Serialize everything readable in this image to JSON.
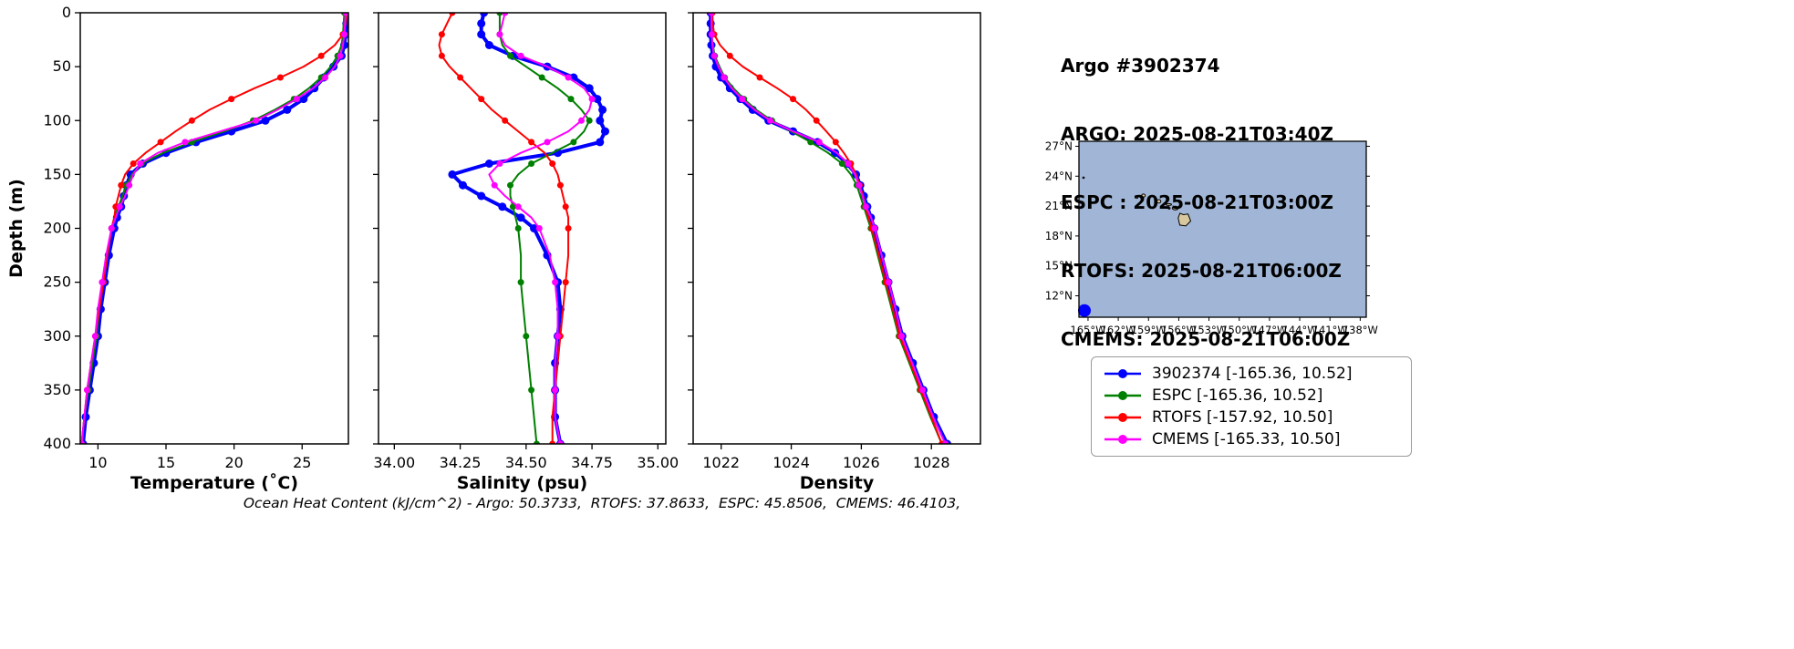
{
  "header": {
    "title": "Argo #3902374",
    "lines": [
      "ARGO: 2025-08-21T03:40Z",
      "ESPC : 2025-08-21T03:00Z",
      "RTOFS: 2025-08-21T06:00Z",
      "CMEMS: 2025-08-21T06:00Z"
    ]
  },
  "footer": {
    "caption": "Ocean Heat Content (kJ/cm^2) - Argo: 50.3733,  RTOFS: 37.8633,  ESPC: 45.8506,  CMEMS: 46.4103,"
  },
  "legend": {
    "entries": [
      {
        "label": "3902374 [-165.36, 10.52]",
        "color": "#0000ff"
      },
      {
        "label": "ESPC [-165.36, 10.52]",
        "color": "#008000"
      },
      {
        "label": "RTOFS [-157.92, 10.50]",
        "color": "#ff0000"
      },
      {
        "label": "CMEMS [-165.33, 10.50]",
        "color": "#ff00ff"
      }
    ]
  },
  "map": {
    "ocean_color": "#a1b6d6",
    "land_color": "#d9c79e",
    "extent": {
      "lon": [
        -165.9,
        -137.4
      ],
      "lat": [
        9.85,
        27.5
      ]
    },
    "lon_values": [
      -165,
      -162,
      -159,
      -156,
      -153,
      -150,
      -147,
      -144,
      -141,
      -138
    ],
    "lon_ticks": [
      "165°W",
      "162°W",
      "159°W",
      "156°W",
      "153°W",
      "150°W",
      "147°W",
      "144°W",
      "141°W",
      "138°W"
    ],
    "lat_values": [
      27,
      24,
      21,
      18,
      15,
      12
    ],
    "lat_ticks": [
      "27°N",
      "24°N",
      "21°N",
      "18°N",
      "15°N",
      "12°N"
    ],
    "marker": {
      "lon": -165.36,
      "lat": 10.52,
      "color": "#0000ff"
    },
    "islands": [
      {
        "name": "hawaii",
        "poly": [
          [
            -155.88,
            20.28
          ],
          [
            -155.55,
            20.14
          ],
          [
            -155.08,
            20.2
          ],
          [
            -154.82,
            19.5
          ],
          [
            -155.3,
            19.0
          ],
          [
            -155.9,
            19.1
          ],
          [
            -156.06,
            19.8
          ]
        ]
      },
      {
        "name": "maui",
        "lon": -156.35,
        "lat": 20.8,
        "rx": 0.3,
        "ry": 0.18
      },
      {
        "name": "molokai",
        "lon": -157.0,
        "lat": 21.15,
        "rx": 0.28,
        "ry": 0.09
      },
      {
        "name": "lanai",
        "lon": -156.95,
        "lat": 20.78,
        "rx": 0.1,
        "ry": 0.08
      },
      {
        "name": "oahu",
        "lon": -157.97,
        "lat": 21.47,
        "rx": 0.2,
        "ry": 0.17
      },
      {
        "name": "kauai",
        "lon": -159.5,
        "lat": 22.05,
        "rx": 0.18,
        "ry": 0.16
      },
      {
        "name": "niihau",
        "lon": -160.15,
        "lat": 21.88,
        "rx": 0.08,
        "ry": 0.1
      },
      {
        "name": "atoll",
        "lon": -165.45,
        "lat": 23.85,
        "rx": 0.08,
        "ry": 0.07
      }
    ]
  },
  "chart_data": [
    {
      "type": "line",
      "xlabel": "Temperature (˚C)",
      "ylabel": "Depth (m)",
      "xlim": [
        8.7,
        28.4
      ],
      "ylim": [
        0,
        400
      ],
      "xticks": [
        10,
        15,
        20,
        25
      ],
      "xtick_labels": [
        "10",
        "15",
        "20",
        "25"
      ],
      "yticks": [
        0,
        50,
        100,
        150,
        200,
        250,
        300,
        350,
        400
      ],
      "depths": [
        0,
        10,
        20,
        30,
        40,
        50,
        60,
        70,
        80,
        90,
        100,
        110,
        120,
        130,
        140,
        150,
        160,
        170,
        180,
        190,
        200,
        225,
        250,
        275,
        300,
        325,
        350,
        375,
        400
      ],
      "series": [
        {
          "name": "3902374",
          "color": "#0000ff",
          "line_width": 4,
          "marker_size": 4.5,
          "marker_every": 1,
          "values": [
            28.3,
            28.25,
            28.2,
            28.1,
            27.9,
            27.3,
            26.6,
            25.9,
            25.1,
            23.9,
            22.3,
            19.8,
            17.2,
            15.0,
            13.3,
            12.4,
            12.1,
            11.9,
            11.7,
            11.4,
            11.2,
            10.8,
            10.5,
            10.2,
            10.0,
            9.7,
            9.4,
            9.1,
            8.9
          ]
        },
        {
          "name": "ESPC",
          "color": "#008000",
          "line_width": 2,
          "marker_size": 3.5,
          "marker_every": 2,
          "values": [
            28.1,
            28.05,
            28.0,
            27.9,
            27.6,
            27.1,
            26.4,
            25.5,
            24.4,
            23.0,
            21.4,
            19.3,
            16.9,
            14.8,
            13.2,
            12.5,
            12.1,
            11.8,
            11.5,
            11.2,
            11.0,
            10.7,
            10.4,
            10.1,
            9.9,
            9.6,
            9.3,
            9.0,
            8.8
          ]
        },
        {
          "name": "RTOFS",
          "color": "#ff0000",
          "line_width": 2,
          "marker_size": 3.5,
          "marker_every": 2,
          "values": [
            28.3,
            28.2,
            28.0,
            27.4,
            26.4,
            25.1,
            23.4,
            21.5,
            19.8,
            18.2,
            16.9,
            15.7,
            14.6,
            13.5,
            12.6,
            12.0,
            11.7,
            11.5,
            11.3,
            11.2,
            11.0,
            10.7,
            10.4,
            10.1,
            9.8,
            9.5,
            9.2,
            9.0,
            8.8
          ]
        },
        {
          "name": "CMEMS",
          "color": "#ff00ff",
          "line_width": 2,
          "marker_size": 3.5,
          "marker_every": 2,
          "values": [
            28.2,
            28.15,
            28.1,
            28.0,
            27.8,
            27.4,
            26.7,
            25.8,
            24.6,
            23.2,
            21.6,
            19.0,
            16.4,
            14.4,
            13.1,
            12.6,
            12.3,
            12.0,
            11.6,
            11.3,
            11.0,
            10.6,
            10.3,
            10.0,
            9.8,
            9.5,
            9.2,
            9.0,
            8.8
          ]
        }
      ]
    },
    {
      "type": "line",
      "xlabel": "Salinity (psu)",
      "ylabel": "Depth (m)",
      "xlim": [
        33.94,
        35.03
      ],
      "ylim": [
        0,
        400
      ],
      "xticks": [
        34.0,
        34.25,
        34.5,
        34.75,
        35.0
      ],
      "xtick_labels": [
        "34.00",
        "34.25",
        "34.50",
        "34.75",
        "35.00"
      ],
      "yticks": [
        0,
        50,
        100,
        150,
        200,
        250,
        300,
        350,
        400
      ],
      "depths": [
        0,
        10,
        20,
        30,
        40,
        50,
        60,
        70,
        80,
        90,
        100,
        110,
        120,
        130,
        140,
        150,
        160,
        170,
        180,
        190,
        200,
        225,
        250,
        275,
        300,
        325,
        350,
        375,
        400
      ],
      "series": [
        {
          "name": "3902374",
          "color": "#0000ff",
          "line_width": 4,
          "marker_size": 4.5,
          "marker_every": 1,
          "values": [
            34.34,
            34.33,
            34.33,
            34.36,
            34.45,
            34.58,
            34.68,
            34.74,
            34.77,
            34.79,
            34.78,
            34.8,
            34.78,
            34.62,
            34.36,
            34.22,
            34.26,
            34.33,
            34.41,
            34.48,
            34.53,
            34.58,
            34.62,
            34.63,
            34.62,
            34.61,
            34.61,
            34.61,
            34.63
          ]
        },
        {
          "name": "ESPC",
          "color": "#008000",
          "line_width": 2,
          "marker_size": 3.5,
          "marker_every": 2,
          "values": [
            34.4,
            34.4,
            34.4,
            34.41,
            34.44,
            34.5,
            34.56,
            34.62,
            34.67,
            34.71,
            34.74,
            34.72,
            34.68,
            34.6,
            34.52,
            34.47,
            34.44,
            34.44,
            34.45,
            34.46,
            34.47,
            34.48,
            34.48,
            34.49,
            34.5,
            34.51,
            34.52,
            34.53,
            34.54
          ]
        },
        {
          "name": "RTOFS",
          "color": "#ff0000",
          "line_width": 2,
          "marker_size": 3.5,
          "marker_every": 2,
          "values": [
            34.22,
            34.2,
            34.18,
            34.17,
            34.18,
            34.21,
            34.25,
            34.29,
            34.33,
            34.37,
            34.42,
            34.47,
            34.52,
            34.57,
            34.6,
            34.62,
            34.63,
            34.64,
            34.65,
            34.66,
            34.66,
            34.66,
            34.65,
            34.64,
            34.63,
            34.62,
            34.61,
            34.6,
            34.6
          ]
        },
        {
          "name": "CMEMS",
          "color": "#ff00ff",
          "line_width": 2,
          "marker_size": 3.5,
          "marker_every": 2,
          "values": [
            34.42,
            34.41,
            34.4,
            34.42,
            34.48,
            34.58,
            34.66,
            34.72,
            34.75,
            34.74,
            34.71,
            34.66,
            34.58,
            34.48,
            34.4,
            34.36,
            34.38,
            34.42,
            34.47,
            34.52,
            34.55,
            34.59,
            34.61,
            34.62,
            34.62,
            34.61,
            34.61,
            34.61,
            34.63
          ]
        }
      ]
    },
    {
      "type": "line",
      "xlabel": "Density",
      "ylabel": "Depth (m)",
      "xlim": [
        1021.2,
        1029.4
      ],
      "ylim": [
        0,
        400
      ],
      "xticks": [
        1022,
        1024,
        1026,
        1028
      ],
      "xtick_labels": [
        "1022",
        "1024",
        "1026",
        "1028"
      ],
      "yticks": [
        0,
        50,
        100,
        150,
        200,
        250,
        300,
        350,
        400
      ],
      "depths": [
        0,
        10,
        20,
        30,
        40,
        50,
        60,
        70,
        80,
        90,
        100,
        110,
        120,
        130,
        140,
        150,
        160,
        170,
        180,
        190,
        200,
        225,
        250,
        275,
        300,
        325,
        350,
        375,
        400
      ],
      "series": [
        {
          "name": "3902374",
          "color": "#0000ff",
          "line_width": 4,
          "marker_size": 4.5,
          "marker_every": 1,
          "values": [
            1021.7,
            1021.7,
            1021.7,
            1021.72,
            1021.76,
            1021.85,
            1022.0,
            1022.25,
            1022.55,
            1022.9,
            1023.35,
            1024.05,
            1024.75,
            1025.25,
            1025.6,
            1025.85,
            1025.97,
            1026.07,
            1026.17,
            1026.27,
            1026.37,
            1026.57,
            1026.77,
            1026.97,
            1027.17,
            1027.47,
            1027.77,
            1028.07,
            1028.45
          ]
        },
        {
          "name": "ESPC",
          "color": "#008000",
          "line_width": 2,
          "marker_size": 3.5,
          "marker_every": 2,
          "values": [
            1021.72,
            1021.72,
            1021.73,
            1021.76,
            1021.82,
            1021.95,
            1022.1,
            1022.35,
            1022.65,
            1023.0,
            1023.45,
            1024.0,
            1024.55,
            1025.05,
            1025.45,
            1025.7,
            1025.87,
            1025.97,
            1026.07,
            1026.17,
            1026.27,
            1026.47,
            1026.67,
            1026.87,
            1027.07,
            1027.37,
            1027.67,
            1027.97,
            1028.3
          ]
        },
        {
          "name": "RTOFS",
          "color": "#ff0000",
          "line_width": 2,
          "marker_size": 3.5,
          "marker_every": 2,
          "values": [
            1021.75,
            1021.76,
            1021.8,
            1021.97,
            1022.25,
            1022.62,
            1023.1,
            1023.6,
            1024.05,
            1024.42,
            1024.72,
            1025.0,
            1025.27,
            1025.5,
            1025.7,
            1025.85,
            1025.95,
            1026.05,
            1026.12,
            1026.2,
            1026.3,
            1026.5,
            1026.7,
            1026.9,
            1027.1,
            1027.4,
            1027.7,
            1028.0,
            1028.3
          ]
        },
        {
          "name": "CMEMS",
          "color": "#ff00ff",
          "line_width": 2,
          "marker_size": 3.5,
          "marker_every": 2,
          "values": [
            1021.72,
            1021.72,
            1021.73,
            1021.75,
            1021.8,
            1021.92,
            1022.08,
            1022.3,
            1022.6,
            1022.95,
            1023.4,
            1024.05,
            1024.8,
            1025.3,
            1025.62,
            1025.82,
            1025.93,
            1026.03,
            1026.13,
            1026.28,
            1026.38,
            1026.58,
            1026.78,
            1026.98,
            1027.15,
            1027.45,
            1027.75,
            1028.05,
            1028.4
          ]
        }
      ]
    }
  ]
}
